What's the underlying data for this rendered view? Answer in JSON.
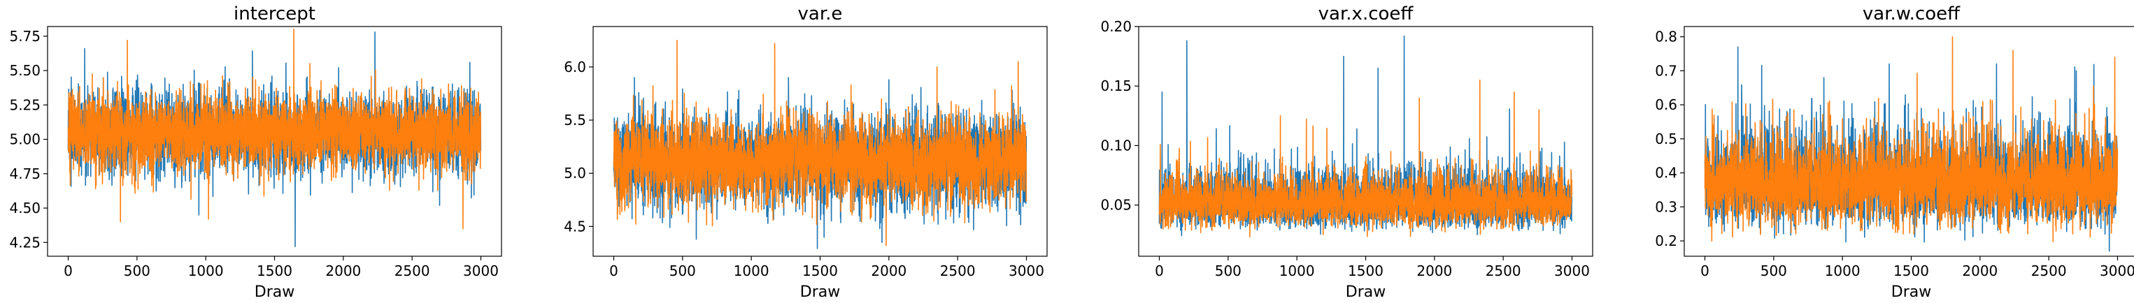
{
  "colors": {
    "series_1": "#1f77b4",
    "series_2": "#ff7f0e"
  },
  "chart_data": [
    {
      "type": "line",
      "title": "intercept",
      "xlabel": "Draw",
      "ylabel": "",
      "xlim": [
        -150,
        3150
      ],
      "ylim": [
        4.15,
        5.82
      ],
      "xticks": [
        0,
        500,
        1000,
        1500,
        2000,
        2500,
        3000
      ],
      "xtick_labels": [
        "0",
        "500",
        "1000",
        "1500",
        "2000",
        "2500",
        "3000"
      ],
      "yticks": [
        4.25,
        4.5,
        4.75,
        5.0,
        5.25,
        5.5,
        5.75
      ],
      "ytick_labels": [
        "4.25",
        "4.50",
        "4.75",
        "5.00",
        "5.25",
        "5.50",
        "5.75"
      ],
      "grid": false,
      "n_draws": 3000,
      "series": [
        {
          "center": 5.05,
          "spread": 0.15,
          "spikes": [
            [
              1650,
              4.22
            ],
            [
              2230,
              5.78
            ],
            [
              950,
              4.45
            ],
            [
              120,
              5.66
            ],
            [
              2700,
              4.52
            ]
          ]
        },
        {
          "center": 5.05,
          "spread": 0.14,
          "spikes": [
            [
              1640,
              5.8
            ],
            [
              2870,
              4.35
            ],
            [
              430,
              5.72
            ],
            [
              1020,
              4.42
            ],
            [
              380,
              4.4
            ]
          ]
        }
      ]
    },
    {
      "type": "line",
      "title": "var.e",
      "xlabel": "Draw",
      "ylabel": "",
      "xlim": [
        -150,
        3150
      ],
      "ylim": [
        4.22,
        6.38
      ],
      "xticks": [
        0,
        500,
        1000,
        1500,
        2000,
        2500,
        3000
      ],
      "xtick_labels": [
        "0",
        "500",
        "1000",
        "1500",
        "2000",
        "2500",
        "3000"
      ],
      "yticks": [
        4.5,
        5.0,
        5.5,
        6.0
      ],
      "ytick_labels": [
        "4.5",
        "5.0",
        "5.5",
        "6.0"
      ],
      "grid": false,
      "n_draws": 3000,
      "series": [
        {
          "center": 5.12,
          "spread": 0.22,
          "spikes": [
            [
              150,
              5.9
            ],
            [
              1270,
              5.9
            ],
            [
              2000,
              5.88
            ],
            [
              1950,
              4.35
            ],
            [
              600,
              4.38
            ]
          ]
        },
        {
          "center": 5.12,
          "spread": 0.21,
          "spikes": [
            [
              460,
              6.25
            ],
            [
              1170,
              6.22
            ],
            [
              2940,
              6.05
            ],
            [
              2350,
              6.0
            ],
            [
              1980,
              4.32
            ]
          ]
        }
      ]
    },
    {
      "type": "line",
      "title": "var.x.coeff",
      "xlabel": "Draw",
      "ylabel": "",
      "xlim": [
        -150,
        3150
      ],
      "ylim": [
        0.007,
        0.2
      ],
      "xticks": [
        0,
        500,
        1000,
        1500,
        2000,
        2500,
        3000
      ],
      "xtick_labels": [
        "0",
        "500",
        "1000",
        "1500",
        "2000",
        "2500",
        "3000"
      ],
      "yticks": [
        0.05,
        0.1,
        0.15,
        0.2
      ],
      "ytick_labels": [
        "0.05",
        "0.10",
        "0.15",
        "0.20"
      ],
      "grid": false,
      "n_draws": 3000,
      "series": [
        {
          "center": 0.052,
          "spread": 0.013,
          "spikes": [
            [
              200,
              0.188
            ],
            [
              1780,
              0.192
            ],
            [
              1340,
              0.175
            ],
            [
              20,
              0.145
            ],
            [
              1590,
              0.165
            ]
          ]
        },
        {
          "center": 0.052,
          "spread": 0.012,
          "spikes": [
            [
              2330,
              0.155
            ],
            [
              2580,
              0.145
            ],
            [
              1890,
              0.14
            ],
            [
              880,
              0.125
            ],
            [
              2760,
              0.13
            ]
          ]
        }
      ]
    },
    {
      "type": "line",
      "title": "var.w.coeff",
      "xlabel": "Draw",
      "ylabel": "",
      "xlim": [
        -150,
        3150
      ],
      "ylim": [
        0.155,
        0.83
      ],
      "xticks": [
        0,
        500,
        1000,
        1500,
        2000,
        2500,
        3000
      ],
      "xtick_labels": [
        "0",
        "500",
        "1000",
        "1500",
        "2000",
        "2500",
        "3000"
      ],
      "yticks": [
        0.2,
        0.3,
        0.4,
        0.5,
        0.6,
        0.7,
        0.8
      ],
      "ytick_labels": [
        "0.2",
        "0.3",
        "0.4",
        "0.5",
        "0.6",
        "0.7",
        "0.8"
      ],
      "grid": false,
      "n_draws": 3000,
      "series": [
        {
          "center": 0.37,
          "spread": 0.075,
          "spikes": [
            [
              240,
              0.77
            ],
            [
              1340,
              0.72
            ],
            [
              2120,
              0.72
            ],
            [
              2700,
              0.7
            ],
            [
              2940,
              0.17
            ]
          ]
        },
        {
          "center": 0.37,
          "spread": 0.07,
          "spikes": [
            [
              1800,
              0.8
            ],
            [
              2240,
              0.76
            ],
            [
              2980,
              0.74
            ],
            [
              50,
              0.2
            ],
            [
              1520,
              0.22
            ]
          ]
        }
      ]
    }
  ]
}
